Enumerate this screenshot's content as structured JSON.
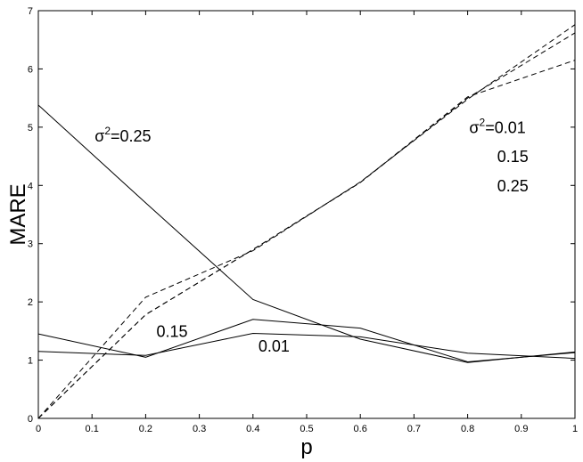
{
  "chart_data": {
    "type": "line",
    "xlabel": "p",
    "ylabel": "MARE",
    "xlim": [
      0,
      1
    ],
    "ylim": [
      0,
      7
    ],
    "xticks": [
      "0",
      "0.1",
      "0.2",
      "0.3",
      "0.4",
      "0.5",
      "0.6",
      "0.7",
      "0.8",
      "0.9",
      "1"
    ],
    "yticks": [
      "0",
      "1",
      "2",
      "3",
      "4",
      "5",
      "6",
      "7"
    ],
    "grid": false,
    "x": [
      0,
      0.2,
      0.4,
      0.6,
      0.8,
      1.0
    ],
    "series": [
      {
        "name": "0.25",
        "style": "solid",
        "values": [
          5.38,
          3.7,
          2.04,
          1.36,
          0.96,
          1.14
        ]
      },
      {
        "name": "0.15",
        "style": "solid",
        "values": [
          1.45,
          1.05,
          1.7,
          1.55,
          0.97,
          1.13
        ]
      },
      {
        "name": "0.01",
        "style": "solid",
        "values": [
          1.15,
          1.08,
          1.46,
          1.4,
          1.12,
          1.03
        ]
      },
      {
        "name": "0.01",
        "style": "dashed",
        "values": [
          0.0,
          2.08,
          2.88,
          4.06,
          5.48,
          6.76
        ]
      },
      {
        "name": "0.15",
        "style": "dashed",
        "values": [
          0.0,
          1.78,
          2.9,
          4.05,
          5.5,
          6.62
        ]
      },
      {
        "name": "0.25",
        "style": "dashed",
        "values": [
          0.0,
          1.78,
          2.9,
          4.05,
          5.52,
          6.15
        ]
      }
    ],
    "annotations": [
      {
        "id": "ann-sigma-025",
        "prefix": "σ",
        "sup": "2",
        "text": "=0.25",
        "x": 0.105,
        "y": 4.75
      },
      {
        "id": "ann-015-solid",
        "text": "0.15",
        "x": 0.22,
        "y": 1.4
      },
      {
        "id": "ann-001-solid",
        "text": "0.01",
        "x": 0.41,
        "y": 1.15
      },
      {
        "id": "ann-sigma-001",
        "prefix": "σ",
        "sup": "2",
        "text": "=0.01",
        "x": 0.803,
        "y": 4.9
      },
      {
        "id": "ann-015-dashed",
        "text": "0.15",
        "x": 0.855,
        "y": 4.4
      },
      {
        "id": "ann-025-dashed",
        "text": "0.25",
        "x": 0.855,
        "y": 3.9
      }
    ]
  }
}
